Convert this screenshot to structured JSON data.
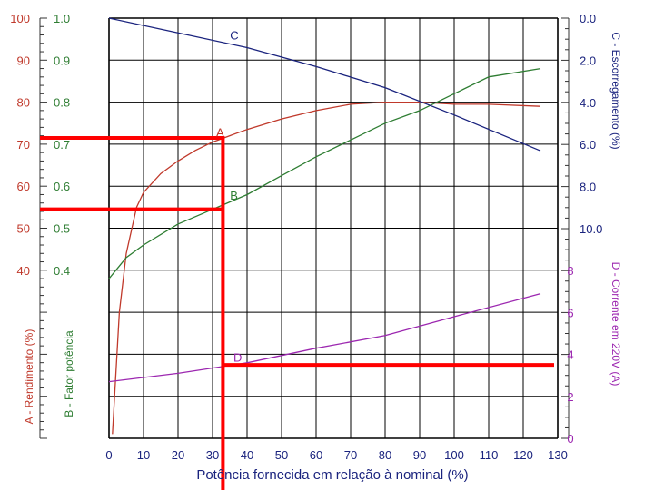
{
  "chart_data": {
    "type": "line",
    "xlabel": "Potência fornecida em relação à nominal (%)",
    "x_ticks": [
      "0",
      "10",
      "20",
      "30",
      "40",
      "50",
      "60",
      "70",
      "80",
      "90",
      "100",
      "110",
      "120",
      "130"
    ],
    "xlim": [
      0,
      130
    ],
    "axes": {
      "A": {
        "label": "A - Rendimento (%)",
        "ticks": [
          "100",
          "90",
          "80",
          "70",
          "60",
          "50",
          "40"
        ],
        "range": [
          0,
          100
        ],
        "color": "#c0392b"
      },
      "B": {
        "label": "B - Fator potência",
        "ticks": [
          "1.0",
          "0.9",
          "0.8",
          "0.7",
          "0.6",
          "0.5",
          "0.4"
        ],
        "range": [
          0,
          1.0
        ],
        "color": "#2e7d32"
      },
      "C": {
        "label": "C - Escorregamento (%)",
        "ticks": [
          "0.0",
          "2.0",
          "4.0",
          "6.0",
          "8.0",
          "10.0"
        ],
        "range": [
          0,
          10
        ],
        "color": "#1a237e"
      },
      "D": {
        "label": "D - Corrente em 220V (A)",
        "ticks": [
          "8",
          "6",
          "4",
          "2",
          "0"
        ],
        "range": [
          0,
          10
        ],
        "color": "#9c27b0"
      }
    },
    "series": [
      {
        "name": "A",
        "label": "A",
        "color": "#c0392b",
        "x": [
          1,
          3,
          5,
          8,
          10,
          15,
          20,
          25,
          30,
          35,
          40,
          50,
          60,
          70,
          80,
          90,
          100,
          110,
          125
        ],
        "y": [
          1,
          30,
          44,
          55,
          58.5,
          63,
          66,
          68.5,
          70.5,
          72,
          73.5,
          76,
          78,
          79.5,
          80,
          80,
          79.5,
          79.5,
          79
        ]
      },
      {
        "name": "B",
        "label": "B",
        "color": "#2e7d32",
        "x": [
          0,
          5,
          10,
          20,
          30,
          40,
          50,
          60,
          70,
          80,
          90,
          100,
          110,
          125
        ],
        "y": [
          0.38,
          0.43,
          0.46,
          0.51,
          0.545,
          0.58,
          0.625,
          0.67,
          0.71,
          0.75,
          0.78,
          0.82,
          0.86,
          0.88
        ]
      },
      {
        "name": "C",
        "label": "C",
        "color": "#1a237e",
        "x": [
          0,
          20,
          40,
          60,
          80,
          100,
          125
        ],
        "y": [
          0,
          0.7,
          1.4,
          2.3,
          3.3,
          4.6,
          6.3
        ]
      },
      {
        "name": "D",
        "label": "D",
        "color": "#9c27b0",
        "x": [
          0,
          20,
          40,
          60,
          80,
          100,
          125
        ],
        "y": [
          2.7,
          3.1,
          3.6,
          4.3,
          4.9,
          5.8,
          6.9
        ]
      }
    ],
    "annotation_lines": {
      "color": "#ff0000",
      "vertical_x": 33,
      "efficiency_level": 71.5,
      "power_factor_level": 0.545,
      "current_level": 3.5
    },
    "grid": true
  }
}
